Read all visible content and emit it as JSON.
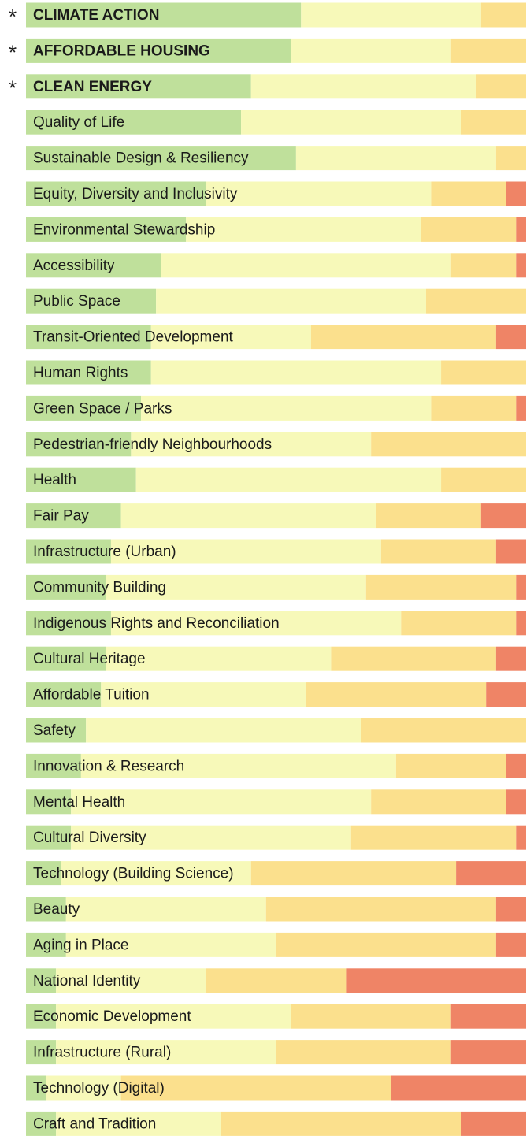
{
  "chart_data": {
    "type": "stacked_bar_horizontal",
    "categories": [
      "CLIMATE ACTION",
      "AFFORDABLE HOUSING",
      "CLEAN ENERGY",
      "Quality of Life",
      "Sustainable Design & Resiliency",
      "Equity, Diversity and Inclusivity",
      "Environmental Stewardship",
      "Accessibility",
      "Public Space",
      "Transit-Oriented Development",
      "Human Rights",
      "Green Space / Parks",
      "Pedestrian-friendly Neighbourhoods",
      "Health",
      "Fair Pay",
      "Infrastructure (Urban)",
      "Community Building",
      "Indigenous Rights and Reconciliation",
      "Cultural Heritage",
      "Affordable Tuition",
      "Safety",
      "Innovation & Research",
      "Mental Health",
      "Cultural Diversity",
      "Technology (Building Science)",
      "Beauty",
      "Aging in Place",
      "National Identity",
      "Economic Development",
      "Infrastructure (Rural)",
      "Technology (Digital)",
      "Craft and Tradition"
    ],
    "markers": [
      "*",
      "*",
      "*",
      null,
      null,
      null,
      null,
      null,
      null,
      null,
      null,
      null,
      null,
      null,
      null,
      null,
      null,
      null,
      null,
      null,
      null,
      null,
      null,
      null,
      null,
      null,
      null,
      null,
      null,
      null,
      null,
      null
    ],
    "xlim": [
      0,
      100
    ],
    "series": [
      {
        "color": "#bfe09b",
        "values": [
          55,
          53,
          45,
          43,
          54,
          36,
          32,
          27,
          26,
          25,
          25,
          23,
          21,
          22,
          19,
          17,
          16,
          17,
          16,
          15,
          12,
          11,
          9,
          9,
          7,
          8,
          8,
          6,
          6,
          6,
          4,
          6
        ]
      },
      {
        "color": "#f7f9b9",
        "values": [
          36,
          32,
          45,
          44,
          40,
          45,
          47,
          58,
          54,
          32,
          58,
          58,
          48,
          61,
          51,
          54,
          52,
          58,
          45,
          41,
          55,
          63,
          60,
          56,
          38,
          40,
          42,
          30,
          47,
          44,
          15,
          33
        ]
      },
      {
        "color": "#fbe08d",
        "values": [
          9,
          15,
          10,
          13,
          6,
          15,
          19,
          13,
          20,
          37,
          17,
          17,
          31,
          17,
          21,
          23,
          30,
          23,
          33,
          36,
          33,
          22,
          27,
          33,
          41,
          46,
          44,
          28,
          32,
          35,
          54,
          48
        ]
      },
      {
        "color": "#ef8466",
        "values": [
          0,
          0,
          0,
          0,
          0,
          4,
          2,
          2,
          0,
          6,
          0,
          2,
          0,
          0,
          9,
          6,
          2,
          2,
          6,
          8,
          0,
          4,
          4,
          2,
          14,
          6,
          6,
          36,
          15,
          15,
          27,
          13
        ]
      }
    ]
  }
}
